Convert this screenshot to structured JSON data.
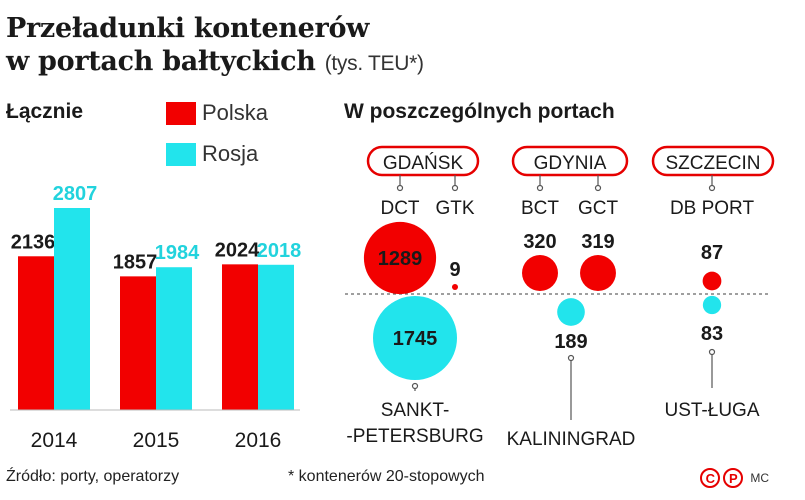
{
  "title": {
    "line1": "Przeładunki kontenerów",
    "line2": "w portach bałtyckich",
    "unit": "(tys. TEU*)"
  },
  "colors": {
    "polska": "#f20000",
    "rosja": "#22e4ec",
    "rosja_text": "#22d3dd",
    "frame": "#e60000",
    "line": "#555555"
  },
  "chart_data": [
    {
      "type": "bar",
      "title": "Łącznie",
      "categories": [
        "2014",
        "2015",
        "2016"
      ],
      "series": [
        {
          "name": "Polska",
          "values": [
            2136,
            1857,
            2024
          ]
        },
        {
          "name": "Rosja",
          "values": [
            2807,
            1984,
            2018
          ]
        }
      ],
      "ylim": [
        0,
        3400
      ],
      "legend": "top"
    },
    {
      "type": "scatter",
      "title": "W poszczególnych portach",
      "polish_ports": [
        {
          "port": "GDAŃSK",
          "terminals": [
            {
              "name": "DCT",
              "value": 1289
            },
            {
              "name": "GTK",
              "value": 9
            }
          ]
        },
        {
          "port": "GDYNIA",
          "terminals": [
            {
              "name": "BCT",
              "value": 320
            },
            {
              "name": "GCT",
              "value": 319
            }
          ]
        },
        {
          "port": "SZCZECIN",
          "terminals": [
            {
              "name": "DB PORT",
              "value": 87
            }
          ]
        }
      ],
      "russian_ports": [
        {
          "name": "SANKT-\n-PETERSBURG",
          "value": 1745
        },
        {
          "name": "KALININGRAD",
          "value": 189
        },
        {
          "name": "UST-ŁUGA",
          "value": 83
        }
      ]
    }
  ],
  "footer": {
    "source": "Źródło: porty, operatorzy",
    "note": "* kontenerów 20-stopowych",
    "credit": "MC"
  }
}
